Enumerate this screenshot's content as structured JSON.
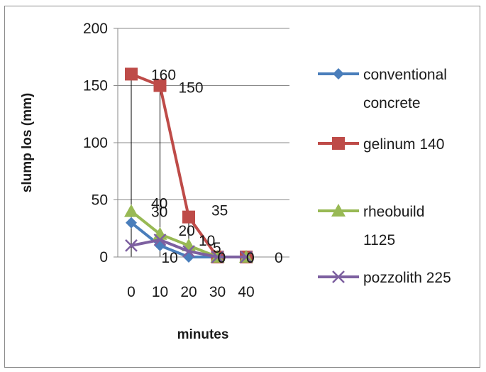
{
  "chart_data": {
    "type": "line",
    "title": "",
    "xlabel": "minutes",
    "ylabel": "slump los (mm)",
    "x": [
      "0",
      "10",
      "20",
      "30",
      "40"
    ],
    "ylim": [
      0,
      200
    ],
    "yticks": [
      "0",
      "50",
      "100",
      "150",
      "200"
    ],
    "grid": true,
    "legend_position": "right",
    "series": [
      {
        "name": "conventional concrete",
        "legend_lines": [
          "conventional",
          "concrete"
        ],
        "values": [
          30,
          10,
          0,
          0,
          0
        ],
        "labels": [
          "30",
          "10",
          "",
          "",
          ""
        ],
        "color": "#4a7ebb",
        "marker": "diamond"
      },
      {
        "name": "gelinum 140",
        "legend_lines": [
          "gelinum 140"
        ],
        "values": [
          160,
          150,
          35,
          0,
          0
        ],
        "labels": [
          "160",
          "150",
          "35",
          "0",
          "0"
        ],
        "color": "#be4b48",
        "marker": "square"
      },
      {
        "name": "rheobuild 1125",
        "legend_lines": [
          "rheobuild",
          "1125"
        ],
        "values": [
          40,
          20,
          10,
          0,
          0
        ],
        "labels": [
          "40",
          "20",
          "10",
          "0",
          "0"
        ],
        "color": "#98b954",
        "marker": "triangle"
      },
      {
        "name": "pozzolith 225",
        "legend_lines": [
          "pozzolith 225"
        ],
        "values": [
          10,
          15,
          5,
          0,
          0
        ],
        "labels": [
          "",
          "",
          "5",
          "",
          "0"
        ],
        "color": "#7d60a0",
        "marker": "x"
      }
    ]
  }
}
